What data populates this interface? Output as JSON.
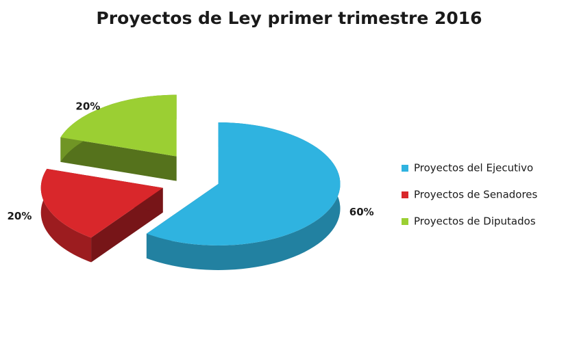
{
  "chart_data": {
    "type": "pie",
    "title": "Proyectos de Ley primer trimestre 2016",
    "categories": [
      "Proyectos del Ejecutivo",
      "Proyectos de Senadores",
      "Proyectos de Diputados"
    ],
    "values": [
      60,
      20,
      20
    ],
    "value_labels": [
      "60%",
      "20%",
      "20%"
    ],
    "colors": [
      "#2fb3e0",
      "#d9272b",
      "#9bcf33"
    ],
    "legend": "right"
  }
}
